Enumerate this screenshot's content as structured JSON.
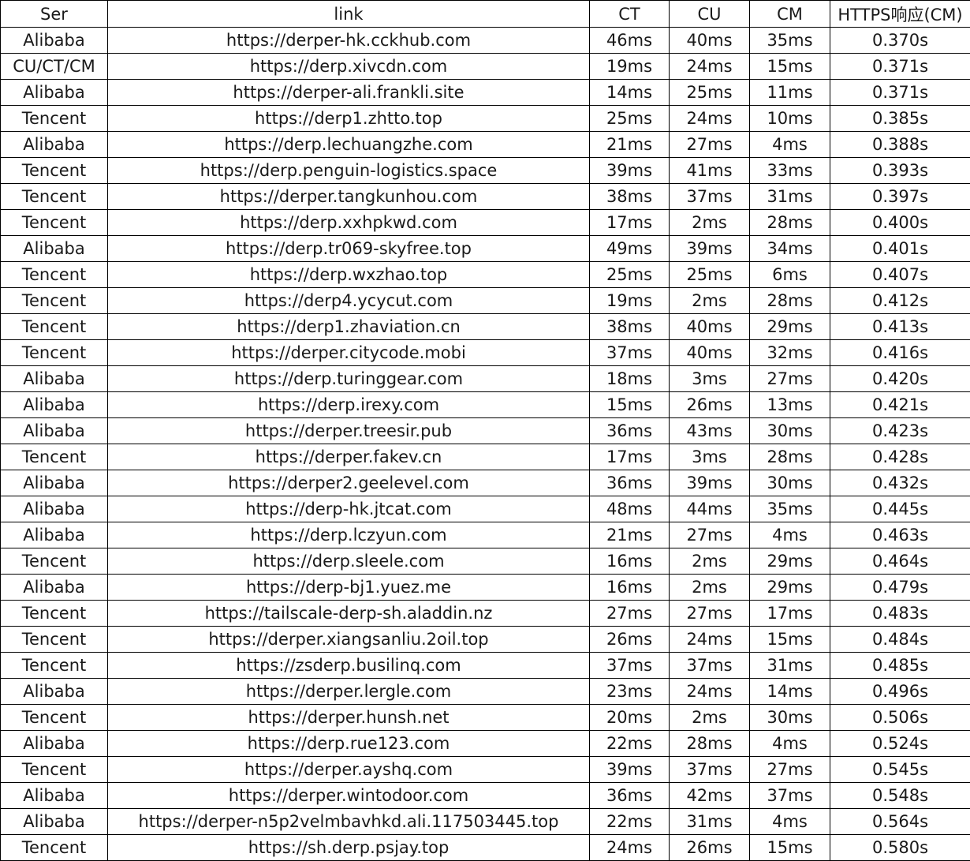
{
  "table": {
    "headers": [
      "Ser",
      "link",
      "CT",
      "CU",
      "CM",
      "HTTPS响应(CM)"
    ],
    "rows": [
      [
        "Alibaba",
        "https://derper-hk.cckhub.com",
        "46ms",
        "40ms",
        "35ms",
        "0.370s"
      ],
      [
        "CU/CT/CM",
        "https://derp.xivcdn.com",
        "19ms",
        "24ms",
        "15ms",
        "0.371s"
      ],
      [
        "Alibaba",
        "https://derper-ali.frankli.site",
        "14ms",
        "25ms",
        "11ms",
        "0.371s"
      ],
      [
        "Tencent",
        "https://derp1.zhtto.top",
        "25ms",
        "24ms",
        "10ms",
        "0.385s"
      ],
      [
        "Alibaba",
        "https://derp.lechuangzhe.com",
        "21ms",
        "27ms",
        "4ms",
        "0.388s"
      ],
      [
        "Tencent",
        "https://derp.penguin-logistics.space",
        "39ms",
        "41ms",
        "33ms",
        "0.393s"
      ],
      [
        "Tencent",
        "https://derper.tangkunhou.com",
        "38ms",
        "37ms",
        "31ms",
        "0.397s"
      ],
      [
        "Tencent",
        "https://derp.xxhpkwd.com",
        "17ms",
        "2ms",
        "28ms",
        "0.400s"
      ],
      [
        "Alibaba",
        "https://derp.tr069-skyfree.top",
        "49ms",
        "39ms",
        "34ms",
        "0.401s"
      ],
      [
        "Tencent",
        "https://derp.wxzhao.top",
        "25ms",
        "25ms",
        "6ms",
        "0.407s"
      ],
      [
        "Tencent",
        "https://derp4.ycycut.com",
        "19ms",
        "2ms",
        "28ms",
        "0.412s"
      ],
      [
        "Tencent",
        "https://derp1.zhaviation.cn",
        "38ms",
        "40ms",
        "29ms",
        "0.413s"
      ],
      [
        "Tencent",
        "https://derper.citycode.mobi",
        "37ms",
        "40ms",
        "32ms",
        "0.416s"
      ],
      [
        "Alibaba",
        "https://derp.turinggear.com",
        "18ms",
        "3ms",
        "27ms",
        "0.420s"
      ],
      [
        "Alibaba",
        "https://derp.irexy.com",
        "15ms",
        "26ms",
        "13ms",
        "0.421s"
      ],
      [
        "Alibaba",
        "https://derper.treesir.pub",
        "36ms",
        "43ms",
        "30ms",
        "0.423s"
      ],
      [
        "Tencent",
        "https://derper.fakev.cn",
        "17ms",
        "3ms",
        "28ms",
        "0.428s"
      ],
      [
        "Alibaba",
        "https://derper2.geelevel.com",
        "36ms",
        "39ms",
        "30ms",
        "0.432s"
      ],
      [
        "Alibaba",
        "https://derp-hk.jtcat.com",
        "48ms",
        "44ms",
        "35ms",
        "0.445s"
      ],
      [
        "Alibaba",
        "https://derp.lczyun.com",
        "21ms",
        "27ms",
        "4ms",
        "0.463s"
      ],
      [
        "Tencent",
        "https://derp.sleele.com",
        "16ms",
        "2ms",
        "29ms",
        "0.464s"
      ],
      [
        "Alibaba",
        "https://derp-bj1.yuez.me",
        "16ms",
        "2ms",
        "29ms",
        "0.479s"
      ],
      [
        "Tencent",
        "https://tailscale-derp-sh.aladdin.nz",
        "27ms",
        "27ms",
        "17ms",
        "0.483s"
      ],
      [
        "Tencent",
        "https://derper.xiangsanliu.2oil.top",
        "26ms",
        "24ms",
        "15ms",
        "0.484s"
      ],
      [
        "Tencent",
        "https://zsderp.busilinq.com",
        "37ms",
        "37ms",
        "31ms",
        "0.485s"
      ],
      [
        "Alibaba",
        "https://derper.lergle.com",
        "23ms",
        "24ms",
        "14ms",
        "0.496s"
      ],
      [
        "Tencent",
        "https://derper.hunsh.net",
        "20ms",
        "2ms",
        "30ms",
        "0.506s"
      ],
      [
        "Alibaba",
        "https://derp.rue123.com",
        "22ms",
        "28ms",
        "4ms",
        "0.524s"
      ],
      [
        "Tencent",
        "https://derper.ayshq.com",
        "39ms",
        "37ms",
        "27ms",
        "0.545s"
      ],
      [
        "Alibaba",
        "https://derper.wintodoor.com",
        "36ms",
        "42ms",
        "37ms",
        "0.548s"
      ],
      [
        "Alibaba",
        "https://derper-n5p2velmbavhkd.ali.117503445.top",
        "22ms",
        "31ms",
        "4ms",
        "0.564s"
      ],
      [
        "Tencent",
        "https://sh.derp.psjay.top",
        "24ms",
        "26ms",
        "15ms",
        "0.580s"
      ]
    ]
  }
}
